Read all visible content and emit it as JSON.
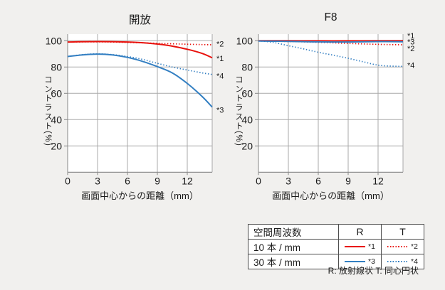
{
  "colors": {
    "background": "#f1f0ee",
    "plot_bg": "#ffffff",
    "grid": "#a9a9a9",
    "axis": "#878787",
    "text": "#1a1a1a",
    "red": "#e8120d",
    "blue": "#337fc2",
    "table_border": "#4d4d4d"
  },
  "chart_data": [
    {
      "id": "wide-open",
      "type": "line",
      "title": "開放",
      "xlabel": "画面中心からの距離（mm）",
      "ylabel": "コントラスト(%)",
      "xlim": [
        0,
        14.5
      ],
      "ylim": [
        0,
        105
      ],
      "xticks": [
        0,
        3,
        6,
        9,
        12
      ],
      "yticks": [
        20,
        40,
        60,
        80,
        100
      ],
      "grid": true,
      "legend_position": "right-margin-asterisk-labels",
      "series": [
        {
          "name": "10本/mm R(放射線状)",
          "label": "*1",
          "color": "red",
          "style": "solid",
          "label_value": 86.5,
          "points": [
            [
              0,
              99
            ],
            [
              3,
              99.3
            ],
            [
              6,
              99
            ],
            [
              8,
              98.2
            ],
            [
              10,
              96.5
            ],
            [
              12,
              93.5
            ],
            [
              13.5,
              90.3
            ],
            [
              14.5,
              87
            ]
          ]
        },
        {
          "name": "10本/mm T(同心円状)",
          "label": "*2",
          "color": "red",
          "style": "dotted",
          "label_value": 97.6,
          "points": [
            [
              0,
              99
            ],
            [
              3,
              99.1
            ],
            [
              6,
              98.7
            ],
            [
              9,
              98
            ],
            [
              12,
              97.3
            ],
            [
              14.5,
              96.9
            ]
          ]
        },
        {
          "name": "30本/mm R(放射線状)",
          "label": "*3",
          "color": "blue",
          "style": "solid",
          "label_value": 47.5,
          "points": [
            [
              0,
              88
            ],
            [
              1.5,
              89.2
            ],
            [
              3,
              89.8
            ],
            [
              4.5,
              89.2
            ],
            [
              6,
              87.3
            ],
            [
              7.5,
              84.3
            ],
            [
              9,
              80.3
            ],
            [
              10.5,
              75.5
            ],
            [
              12,
              67.5
            ],
            [
              13.5,
              57.5
            ],
            [
              14.5,
              49.5
            ]
          ]
        },
        {
          "name": "30本/mm T(同心円状)",
          "label": "*4",
          "color": "blue",
          "style": "dotted",
          "label_value": 73.5,
          "points": [
            [
              0,
              88
            ],
            [
              1.5,
              89.4
            ],
            [
              3,
              90
            ],
            [
              4.5,
              89.4
            ],
            [
              6,
              88
            ],
            [
              7.5,
              85.8
            ],
            [
              9,
              82.8
            ],
            [
              10.5,
              80
            ],
            [
              12,
              77.7
            ],
            [
              13.5,
              75.5
            ],
            [
              14.5,
              74.3
            ]
          ]
        }
      ]
    },
    {
      "id": "f8",
      "type": "line",
      "title": "F8",
      "xlabel": "画面中心からの距離（mm）",
      "ylabel": "コントラスト(%)",
      "xlim": [
        0,
        14.5
      ],
      "ylim": [
        0,
        105
      ],
      "xticks": [
        0,
        3,
        6,
        9,
        12
      ],
      "yticks": [
        20,
        40,
        60,
        80,
        100
      ],
      "grid": true,
      "legend_position": "right-margin-asterisk-labels",
      "series": [
        {
          "name": "10本/mm R(放射線状)",
          "label": "*1",
          "color": "red",
          "style": "solid",
          "label_value": 103.8,
          "points": [
            [
              0,
              100
            ],
            [
              3,
              100
            ],
            [
              6,
              99.9
            ],
            [
              9,
              99.9
            ],
            [
              12,
              100
            ],
            [
              14.5,
              100
            ]
          ]
        },
        {
          "name": "10本/mm T(同心円状)",
          "label": "*2",
          "color": "red",
          "style": "dotted",
          "label_value": 94.2,
          "points": [
            [
              0,
              99.8
            ],
            [
              3,
              99.4
            ],
            [
              6,
              98.8
            ],
            [
              9,
              97.9
            ],
            [
              12,
              97.2
            ],
            [
              14.5,
              96.9
            ]
          ]
        },
        {
          "name": "30本/mm R(放射線状)",
          "label": "*3",
          "color": "blue",
          "style": "solid",
          "label_value": 99.3,
          "points": [
            [
              0,
              99.7
            ],
            [
              3,
              99.5
            ],
            [
              6,
              99.1
            ],
            [
              9,
              99
            ],
            [
              12,
              99.3
            ],
            [
              14.5,
              99.2
            ]
          ]
        },
        {
          "name": "30本/mm T(同心円状)",
          "label": "*4",
          "color": "blue",
          "style": "dotted",
          "label_value": 81.6,
          "points": [
            [
              0,
              99.9
            ],
            [
              1.5,
              98.7
            ],
            [
              3,
              96.2
            ],
            [
              4.5,
              93.8
            ],
            [
              6,
              91.2
            ],
            [
              7.5,
              89
            ],
            [
              9,
              86.6
            ],
            [
              10.5,
              84
            ],
            [
              12,
              81.4
            ],
            [
              13.5,
              80.6
            ],
            [
              14.5,
              80.5
            ]
          ]
        }
      ]
    }
  ],
  "legend_table": {
    "col_headers": [
      "空間周波数",
      "R",
      "T"
    ],
    "rows": [
      {
        "frequency": "10 本 / mm",
        "cells": [
          {
            "style": "solid",
            "color": "red",
            "label": "*1"
          },
          {
            "style": "dotted",
            "color": "red",
            "label": "*2"
          }
        ]
      },
      {
        "frequency": "30 本 / mm",
        "cells": [
          {
            "style": "solid",
            "color": "blue",
            "label": "*3"
          },
          {
            "style": "dotted",
            "color": "blue",
            "label": "*4"
          }
        ]
      }
    ],
    "caption": "R: 放射線状  T: 同心円状"
  }
}
